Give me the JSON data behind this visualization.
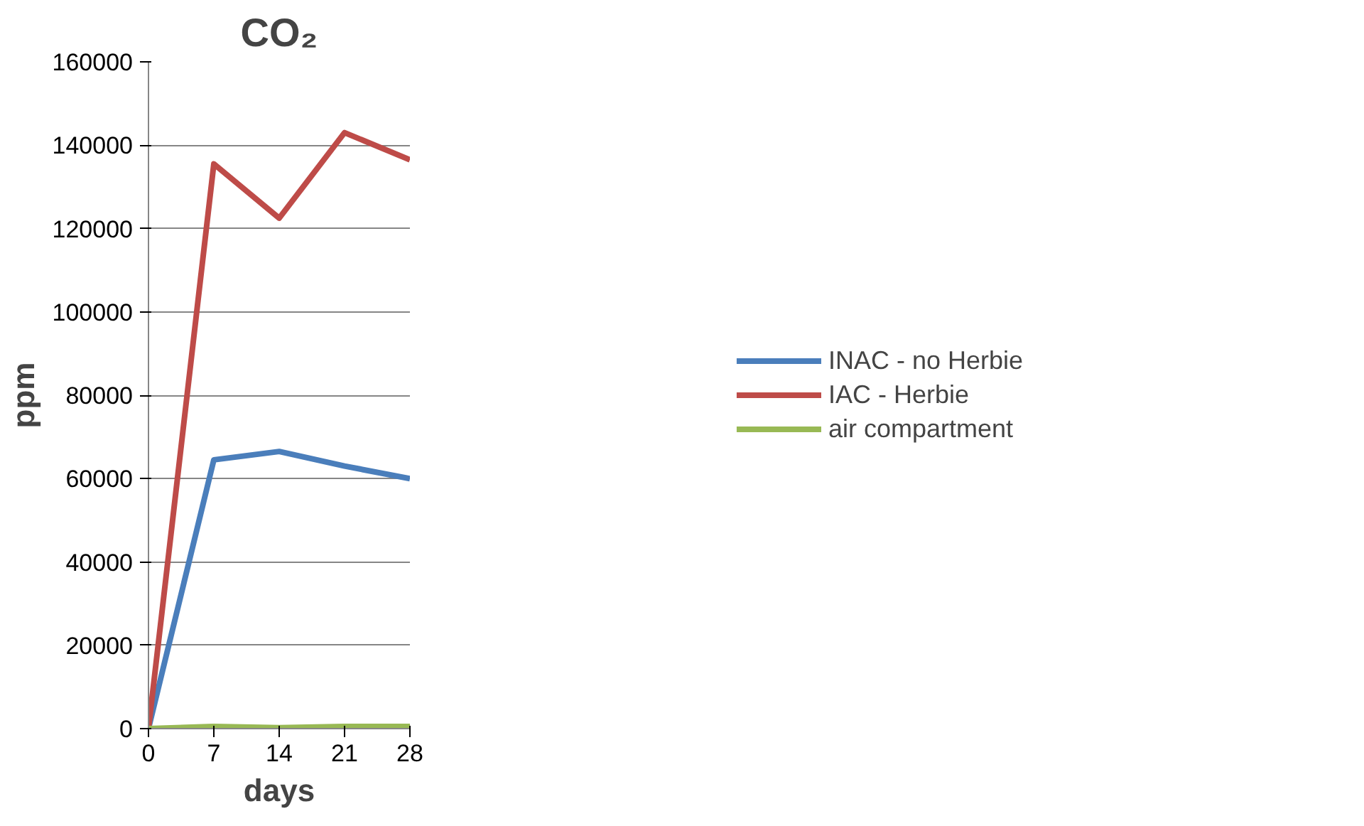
{
  "chart_data": {
    "type": "line",
    "title": "CO₂",
    "xlabel": "days",
    "ylabel": "ppm",
    "x": [
      0,
      7,
      14,
      21,
      28
    ],
    "xlim": [
      0,
      28
    ],
    "xticks": [
      0,
      7,
      14,
      21,
      28
    ],
    "ylim": [
      0,
      160000
    ],
    "yticks": [
      0,
      20000,
      40000,
      60000,
      80000,
      100000,
      120000,
      140000,
      160000
    ],
    "grid": "y",
    "legend": "right",
    "line_style": "solid",
    "series": [
      {
        "name": "INAC - no Herbie",
        "color": "#4a7ebb",
        "values": [
          0,
          64500,
          66500,
          63000,
          60000
        ]
      },
      {
        "name": "IAC - Herbie",
        "color": "#be4b48",
        "values": [
          0,
          135500,
          122500,
          143000,
          136500
        ]
      },
      {
        "name": "air compartment",
        "color": "#98b954",
        "values": [
          0,
          500,
          200,
          500,
          500
        ]
      }
    ]
  }
}
